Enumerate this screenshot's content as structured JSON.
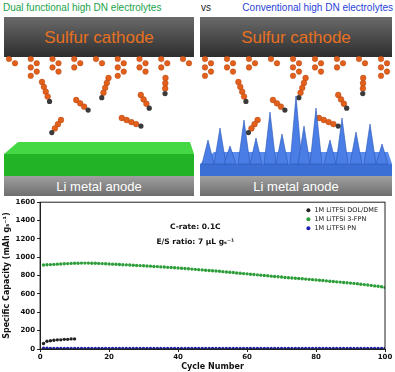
{
  "header": {
    "left": "Dual functional high DN electrolytes",
    "middle": "vs",
    "right": "Conventional high DN electrolytes"
  },
  "panels": [
    {
      "cathode": "Sulfur cathode",
      "anode": "Li metal anode"
    },
    {
      "cathode": "Sulfur cathode",
      "anode": "Li metal anode"
    }
  ],
  "chart_data": {
    "type": "scatter",
    "xlabel": "Cycle Number",
    "ylabel": "Specific Capacity (mAh gₛ⁻¹)",
    "annotations": [
      "C-rate: 0.1C",
      "E/S ratio: 7 µL gₛ⁻¹"
    ],
    "x": [
      1,
      2,
      3,
      4,
      5,
      6,
      7,
      8,
      9,
      10,
      11,
      12,
      13,
      14,
      15,
      16,
      17,
      18,
      19,
      20,
      21,
      22,
      23,
      24,
      25,
      26,
      27,
      28,
      29,
      30,
      31,
      32,
      33,
      34,
      35,
      36,
      37,
      38,
      39,
      40,
      41,
      42,
      43,
      44,
      45,
      46,
      47,
      48,
      49,
      50,
      51,
      52,
      53,
      54,
      55,
      56,
      57,
      58,
      59,
      60,
      61,
      62,
      63,
      64,
      65,
      66,
      67,
      68,
      69,
      70,
      71,
      72,
      73,
      74,
      75,
      76,
      77,
      78,
      79,
      80,
      81,
      82,
      83,
      84,
      85,
      86,
      87,
      88,
      89,
      90,
      91,
      92,
      93,
      94,
      95,
      96,
      97,
      98,
      99,
      100
    ],
    "series": [
      {
        "name": "1M LiTFSI DOL/DME",
        "color": "#222222",
        "values": [
          60,
          85,
          90,
          95,
          100,
          100,
          105,
          105,
          110,
          110,
          null,
          null,
          null,
          null,
          null,
          null,
          null,
          null,
          null,
          null,
          null,
          null,
          null,
          null,
          null,
          null,
          null,
          null,
          null,
          null,
          null,
          null,
          null,
          null,
          null,
          null,
          null,
          null,
          null,
          null,
          null,
          null,
          null,
          null,
          null,
          null,
          null,
          null,
          null,
          null,
          null,
          null,
          null,
          null,
          null,
          null,
          null,
          null,
          null,
          null,
          null,
          null,
          null,
          null,
          null,
          null,
          null,
          null,
          null,
          null,
          null,
          null,
          null,
          null,
          null,
          null,
          null,
          null,
          null,
          null,
          null,
          null,
          null,
          null,
          null,
          null,
          null,
          null,
          null,
          null,
          null,
          null,
          null,
          null,
          null,
          null,
          null,
          null,
          null,
          null
        ]
      },
      {
        "name": "1M LiTFSI 3-FPN",
        "color": "#2e9e3a",
        "values": [
          915,
          918,
          920,
          922,
          925,
          927,
          929,
          931,
          933,
          934,
          935,
          936,
          936,
          936,
          935,
          934,
          933,
          931,
          929,
          927,
          925,
          923,
          921,
          919,
          917,
          915,
          913,
          911,
          909,
          907,
          905,
          903,
          900,
          898,
          895,
          893,
          890,
          888,
          885,
          883,
          880,
          877,
          874,
          871,
          868,
          865,
          862,
          859,
          856,
          853,
          850,
          847,
          843,
          840,
          836,
          833,
          829,
          826,
          822,
          819,
          815,
          812,
          808,
          805,
          801,
          798,
          794,
          791,
          787,
          784,
          780,
          777,
          774,
          771,
          768,
          765,
          762,
          759,
          756,
          753,
          750,
          746,
          743,
          739,
          736,
          732,
          729,
          725,
          722,
          718,
          715,
          711,
          706,
          702,
          697,
          693,
          688,
          684,
          679,
          670
        ]
      },
      {
        "name": "1M LiTFSI PN",
        "color": "#1f1fb4",
        "values": [
          10,
          8,
          7,
          6,
          6,
          6,
          5,
          5,
          5,
          5,
          5,
          5,
          5,
          5,
          5,
          5,
          5,
          5,
          5,
          5,
          5,
          5,
          5,
          5,
          5,
          5,
          5,
          5,
          5,
          5,
          5,
          5,
          5,
          5,
          5,
          5,
          5,
          5,
          5,
          5,
          5,
          5,
          5,
          5,
          5,
          5,
          5,
          5,
          5,
          5,
          5,
          5,
          5,
          5,
          5,
          5,
          5,
          5,
          5,
          5,
          5,
          5,
          5,
          5,
          5,
          5,
          5,
          5,
          5,
          5,
          5,
          5,
          5,
          5,
          5,
          5,
          5,
          5,
          5,
          5,
          5,
          5,
          5,
          5,
          5,
          5,
          5,
          5,
          5,
          5,
          5,
          5,
          5,
          5,
          5,
          5,
          5,
          5,
          5,
          5
        ]
      }
    ],
    "xlim": [
      0,
      100
    ],
    "ylim": [
      0,
      1600
    ],
    "xticks": [
      0,
      20,
      40,
      60,
      80,
      100
    ],
    "yticks": [
      0,
      200,
      400,
      600,
      800,
      1000,
      1200,
      1400,
      1600
    ],
    "legend": "upper right",
    "marker": "circle",
    "grid": false
  }
}
